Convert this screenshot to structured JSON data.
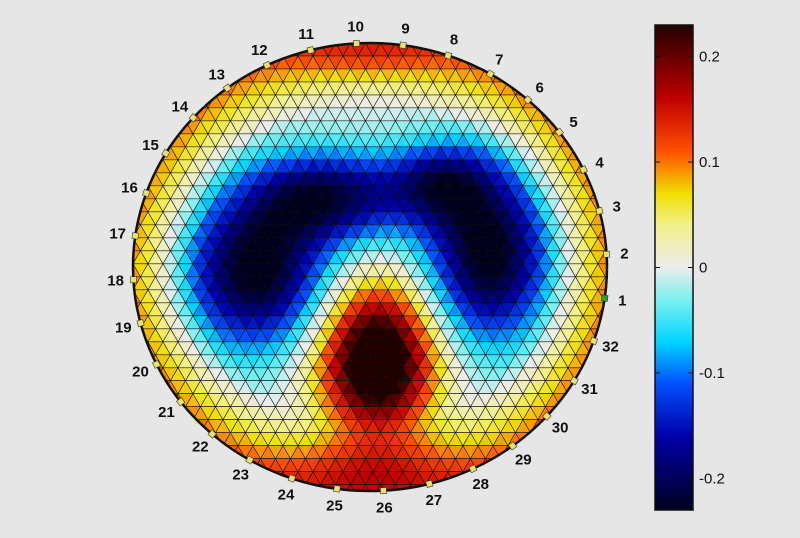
{
  "chart_data": {
    "type": "heatmap",
    "title": "",
    "xlabel": "",
    "ylabel": "",
    "description_shape": "circular finite-element mesh with 32 boundary electrodes",
    "electrodes": [
      "1",
      "2",
      "3",
      "4",
      "5",
      "6",
      "7",
      "8",
      "9",
      "10",
      "11",
      "12",
      "13",
      "14",
      "15",
      "16",
      "17",
      "18",
      "19",
      "20",
      "21",
      "22",
      "23",
      "24",
      "25",
      "26",
      "27",
      "28",
      "29",
      "30",
      "31",
      "32"
    ],
    "colorbar": {
      "range": [
        -0.23,
        0.23
      ],
      "ticks": [
        0.2,
        0.1,
        0,
        -0.1,
        -0.2
      ],
      "tick_labels": [
        "0.2",
        "0.1",
        "0",
        "-0.1",
        "-0.2"
      ],
      "colormap": "jet-like with white center",
      "stops": [
        {
          "v": -0.23,
          "color": "#00001e"
        },
        {
          "v": -0.16,
          "color": "#0000aa"
        },
        {
          "v": -0.11,
          "color": "#0050ff"
        },
        {
          "v": -0.07,
          "color": "#00d6ff"
        },
        {
          "v": -0.03,
          "color": "#7ff0ef"
        },
        {
          "v": 0.0,
          "color": "#ececec"
        },
        {
          "v": 0.04,
          "color": "#f3f08c"
        },
        {
          "v": 0.07,
          "color": "#f0e000"
        },
        {
          "v": 0.11,
          "color": "#ff5000"
        },
        {
          "v": 0.16,
          "color": "#c00000"
        },
        {
          "v": 0.23,
          "color": "#220000"
        }
      ]
    },
    "field_features": [
      {
        "kind": "positive-peak",
        "value": 0.23,
        "region": "center-lower"
      },
      {
        "kind": "negative-trough",
        "value": -0.22,
        "region": "left"
      },
      {
        "kind": "negative-trough",
        "value": -0.22,
        "region": "right"
      },
      {
        "kind": "positive",
        "value": 0.03,
        "region": "top-edge"
      }
    ]
  }
}
